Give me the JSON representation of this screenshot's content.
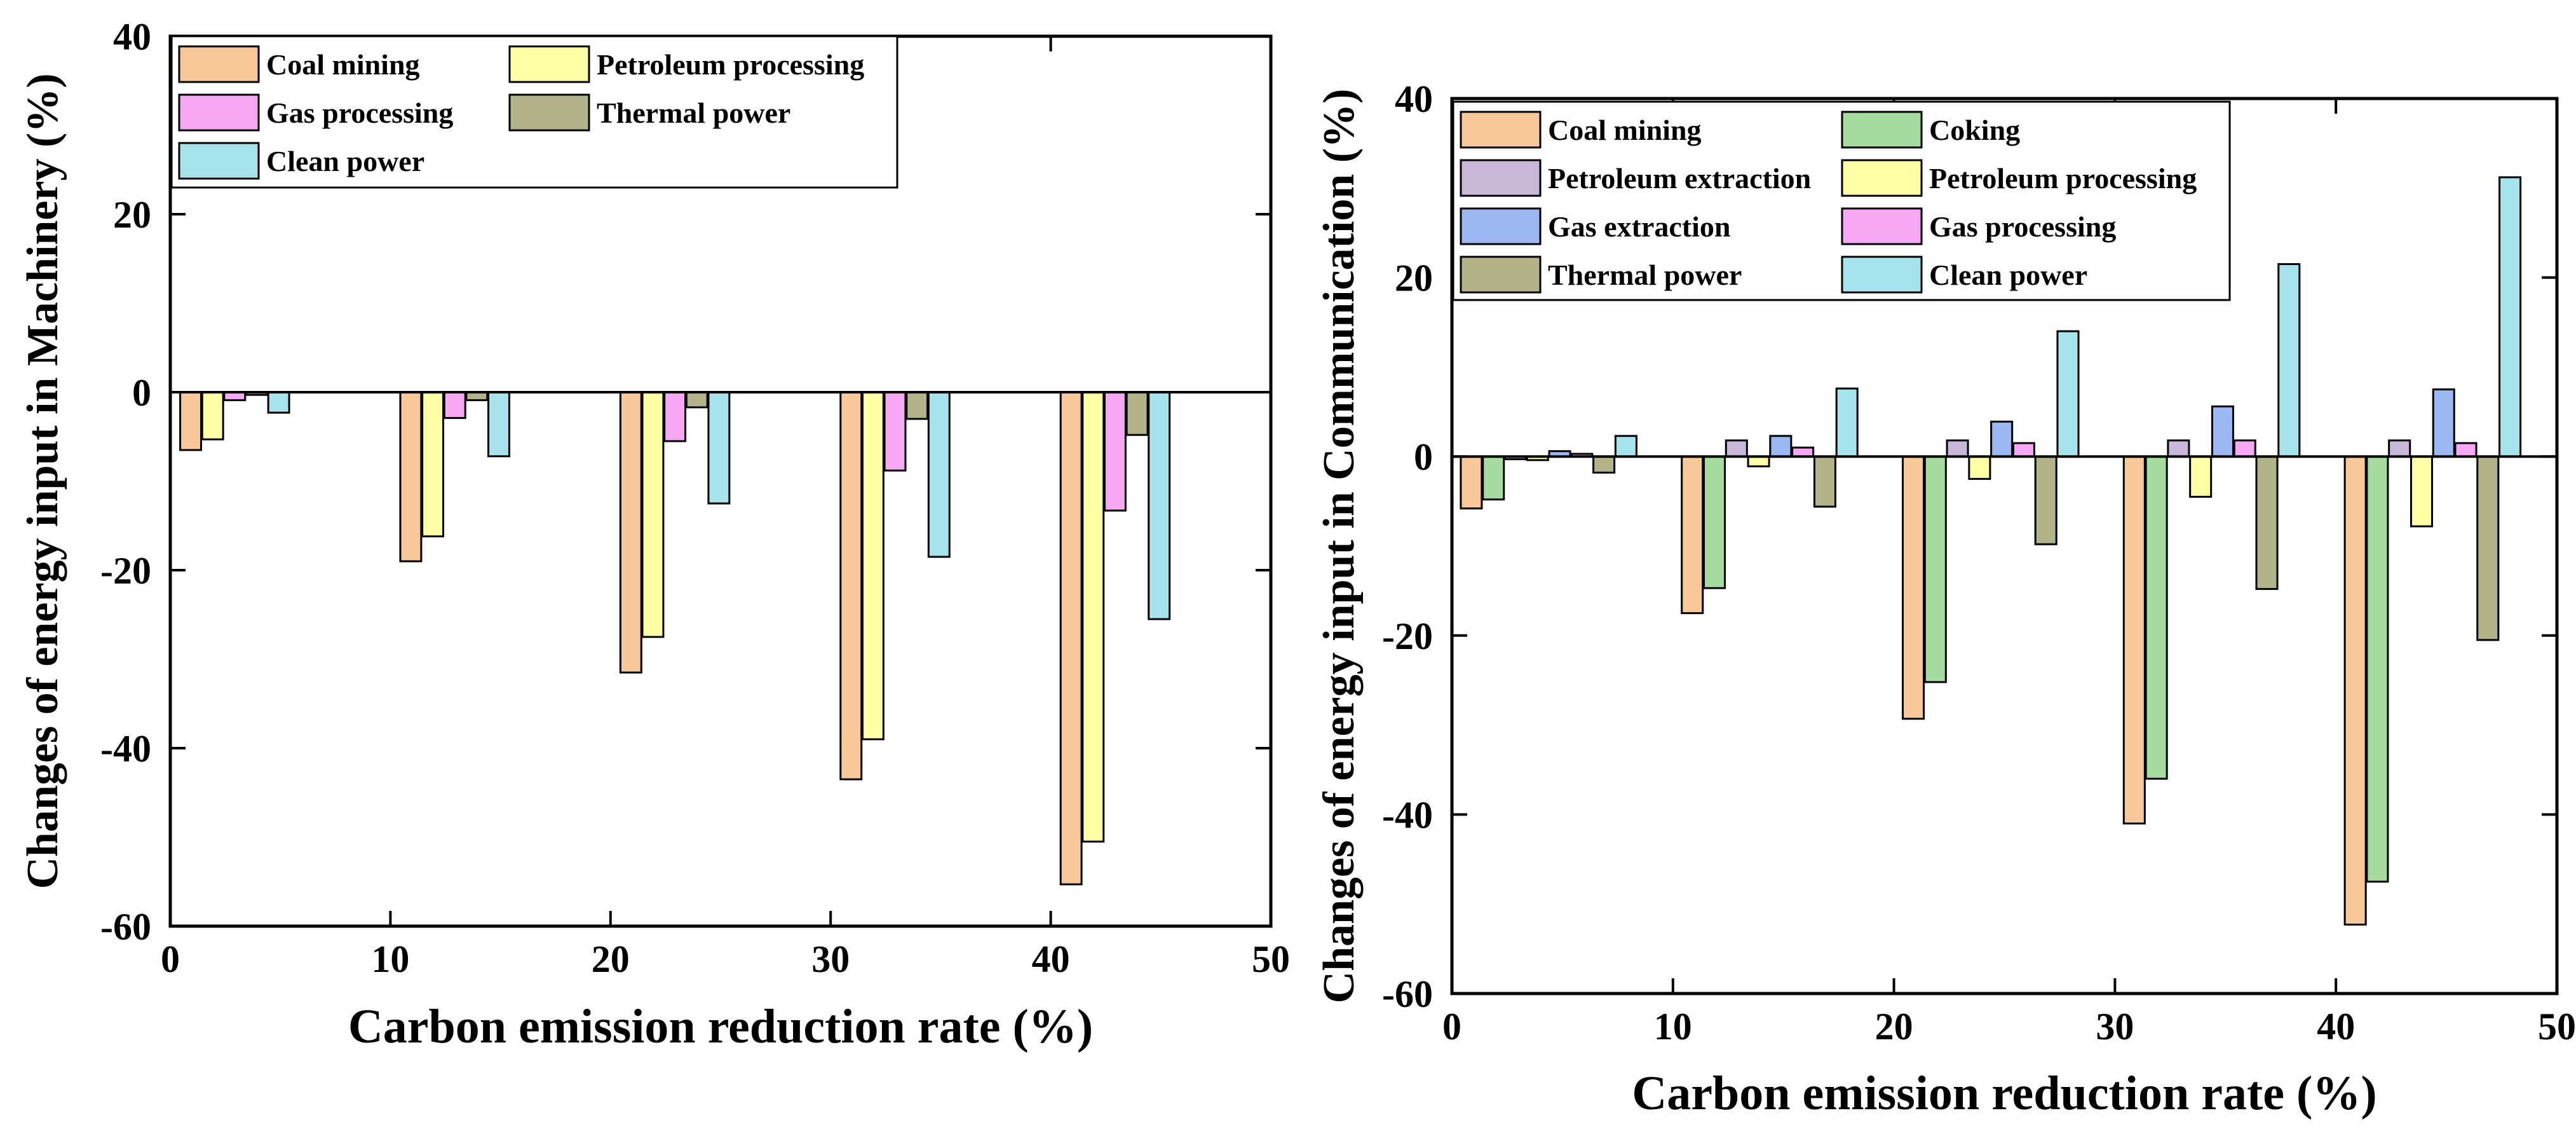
{
  "chart_data": [
    {
      "type": "bar",
      "xlabel": "Carbon emission reduction rate (%)",
      "ylabel": "Changes of energy input in Machinery (%)",
      "xlim": [
        0,
        50
      ],
      "ylim": [
        -60,
        40
      ],
      "xticks": [
        0,
        10,
        20,
        30,
        40,
        50
      ],
      "yticks": [
        -60,
        -40,
        -20,
        0,
        20,
        40
      ],
      "categories": [
        10,
        20,
        30,
        40,
        50
      ],
      "grid": false,
      "legend_position": "top-left",
      "legend_columns": 2,
      "series": [
        {
          "name": "Coal mining",
          "color": "#f8c89a",
          "values": [
            -6.5,
            -19,
            -31.5,
            -43.5,
            -55.3
          ]
        },
        {
          "name": "Petroleum processing",
          "color": "#ffffa6",
          "values": [
            -5.3,
            -16.2,
            -27.5,
            -39,
            -50.5
          ]
        },
        {
          "name": "Gas processing",
          "color": "#f6a8f4",
          "values": [
            -0.9,
            -2.9,
            -5.5,
            -8.8,
            -13.3
          ]
        },
        {
          "name": "Thermal power",
          "color": "#b3b38a",
          "values": [
            -0.3,
            -0.9,
            -1.7,
            -3,
            -4.8
          ]
        },
        {
          "name": "Clean power",
          "color": "#a6e3ec",
          "values": [
            -2.3,
            -7.2,
            -12.5,
            -18.5,
            -25.5
          ]
        }
      ]
    },
    {
      "type": "bar",
      "xlabel": "Carbon emission reduction rate (%)",
      "ylabel": "Changes of energy input in Communication (%)",
      "xlim": [
        0,
        50
      ],
      "ylim": [
        -60,
        40
      ],
      "xticks": [
        0,
        10,
        20,
        30,
        40,
        50
      ],
      "yticks": [
        -60,
        -40,
        -20,
        0,
        20,
        40
      ],
      "categories": [
        10,
        20,
        30,
        40,
        50
      ],
      "grid": false,
      "legend_position": "top-left",
      "legend_columns": 2,
      "series": [
        {
          "name": "Coal mining",
          "color": "#f8c89a",
          "values": [
            -5.8,
            -17.5,
            -29.3,
            -41,
            -52.3
          ]
        },
        {
          "name": "Coking",
          "color": "#a6dca0",
          "values": [
            -4.8,
            -14.7,
            -25.2,
            -36,
            -47.5
          ]
        },
        {
          "name": "Petroleum extraction",
          "color": "#c7b8da",
          "values": [
            -0.3,
            1.8,
            1.8,
            1.8,
            1.8
          ]
        },
        {
          "name": "Petroleum processing",
          "color": "#ffffa6",
          "values": [
            -0.4,
            -1.1,
            -2.5,
            -4.5,
            -7.8
          ]
        },
        {
          "name": "Gas extraction",
          "color": "#9bb8f2",
          "values": [
            0.6,
            2.3,
            3.9,
            5.6,
            7.5
          ]
        },
        {
          "name": "Gas processing",
          "color": "#f6a8f4",
          "values": [
            0.3,
            1,
            1.5,
            1.8,
            1.5
          ]
        },
        {
          "name": "Thermal power",
          "color": "#b3b38a",
          "values": [
            -1.8,
            -5.6,
            -9.8,
            -14.8,
            -20.5
          ]
        },
        {
          "name": "Clean power",
          "color": "#a6e3ec",
          "values": [
            2.3,
            7.6,
            14,
            21.5,
            31.2
          ]
        }
      ]
    }
  ]
}
